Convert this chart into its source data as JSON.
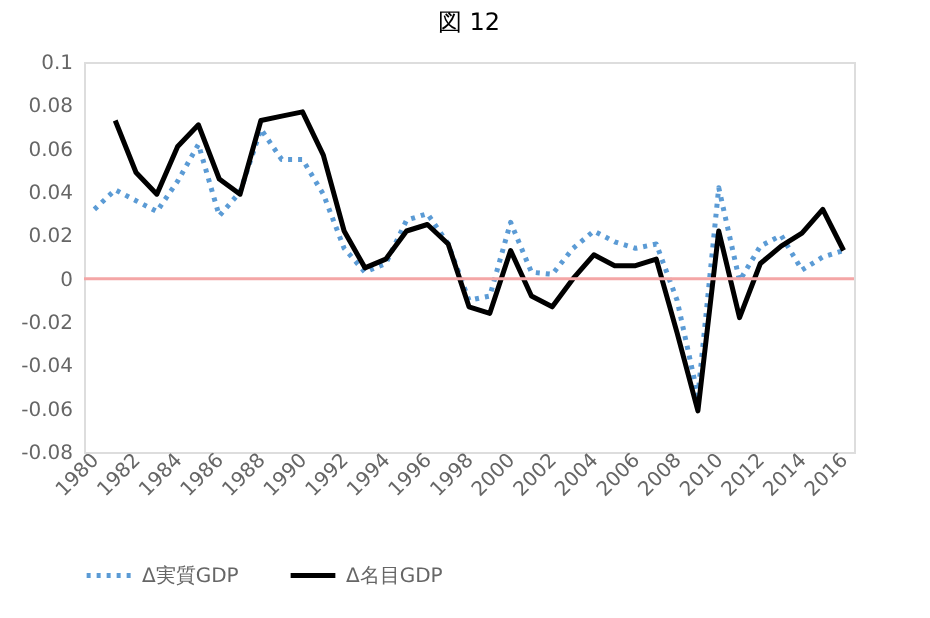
{
  "chart_data": {
    "type": "line",
    "title": "図 12",
    "categories": [
      "1980",
      null,
      "1982",
      null,
      "1984",
      null,
      "1986",
      null,
      "1988",
      null,
      "1990",
      null,
      "1992",
      null,
      "1994",
      null,
      "1996",
      null,
      "1998",
      null,
      "2000",
      null,
      "2002",
      null,
      "2004",
      null,
      "2006",
      null,
      "2008",
      null,
      "2010",
      null,
      "2012",
      null,
      "2014",
      null,
      "2016"
    ],
    "series": [
      {
        "name": "Δ実質GDP",
        "color": "#5b9bd5",
        "line_style": "dotted",
        "values": [
          0.032,
          0.041,
          0.036,
          0.031,
          0.045,
          0.062,
          0.029,
          0.04,
          0.069,
          0.055,
          0.055,
          0.039,
          0.014,
          0.003,
          0.007,
          0.027,
          0.03,
          0.016,
          -0.01,
          -0.008,
          0.026,
          0.003,
          0.002,
          0.014,
          0.022,
          0.017,
          0.014,
          0.016,
          -0.01,
          -0.054,
          0.042,
          -0.001,
          0.015,
          0.02,
          0.004,
          0.01,
          0.013
        ]
      },
      {
        "name": "Δ名目GDP",
        "color": "#000000",
        "line_style": "solid",
        "values": [
          null,
          0.073,
          0.049,
          0.039,
          0.061,
          0.071,
          0.046,
          0.039,
          0.073,
          0.075,
          0.077,
          0.057,
          0.022,
          0.005,
          0.009,
          0.022,
          0.025,
          0.016,
          -0.013,
          -0.016,
          0.013,
          -0.008,
          -0.013,
          0.0,
          0.011,
          0.006,
          0.006,
          0.009,
          -0.025,
          -0.061,
          0.022,
          -0.018,
          0.007,
          0.015,
          0.021,
          0.032,
          0.013
        ]
      }
    ],
    "ylim": [
      -0.08,
      0.1
    ],
    "yticks": [
      -0.08,
      -0.06,
      -0.04,
      -0.02,
      0,
      0.02,
      0.04,
      0.06,
      0.08,
      0.1
    ],
    "ref_lines": [
      {
        "axis": "y",
        "value": 0,
        "color": "#f4a6a6"
      }
    ],
    "grid": false,
    "legend": "bottom",
    "marker": "none"
  }
}
